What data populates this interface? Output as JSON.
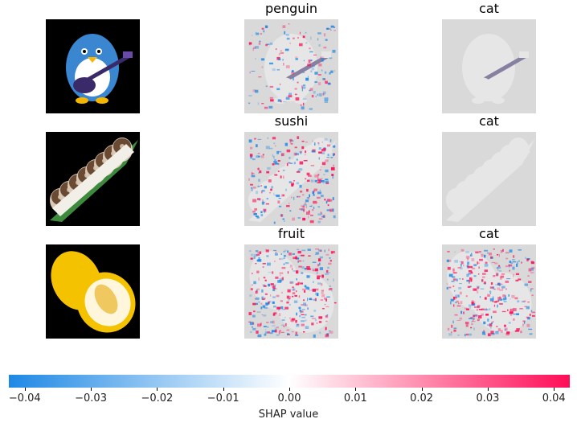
{
  "rows": [
    {
      "input": "penguin playing guitar",
      "labels": [
        "penguin",
        "cat"
      ]
    },
    {
      "input": "sushi roll on leaf",
      "labels": [
        "sushi",
        "cat"
      ]
    },
    {
      "input": "melon halves",
      "labels": [
        "fruit",
        "cat"
      ]
    }
  ],
  "chart_data": {
    "type": "heatmap",
    "colorbar": {
      "label": "SHAP value",
      "range": [
        -0.0424,
        0.0424
      ],
      "ticks": [
        -0.04,
        -0.03,
        -0.02,
        -0.01,
        0.0,
        0.01,
        0.02,
        0.03,
        0.04
      ],
      "tick_labels": [
        "−0.04",
        "−0.03",
        "−0.02",
        "−0.01",
        "0.00",
        "0.01",
        "0.02",
        "0.03",
        "0.04"
      ],
      "colors": {
        "negative": "#1e88e5",
        "zero": "#ffffff",
        "positive": "#ff0d57"
      }
    },
    "panel_background": "#d9d9d9"
  }
}
